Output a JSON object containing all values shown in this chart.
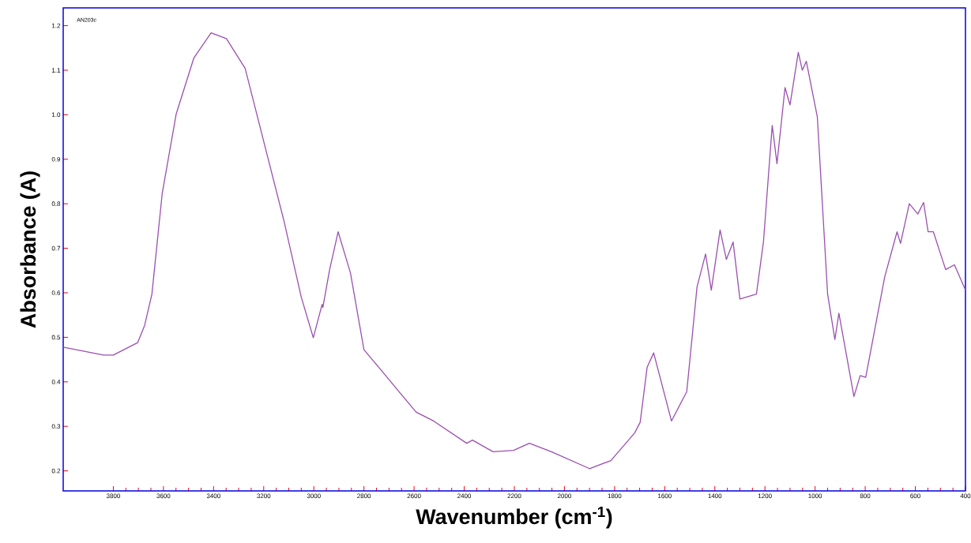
{
  "chart_data": {
    "type": "line",
    "xlabel": "Wavenumber (cm$^{-1}$)",
    "ylabel": "Absorbance (A)",
    "annotations": [
      "AN203c"
    ],
    "xlim": [
      4000,
      400
    ],
    "ylim": [
      0.155,
      1.24
    ],
    "xticks": [
      3800,
      3600,
      3400,
      3200,
      3000,
      2800,
      2600,
      2400,
      2200,
      2000,
      1800,
      1600,
      1400,
      1200,
      1000,
      800,
      600,
      400
    ],
    "yticks": [
      0.2,
      0.3,
      0.4,
      0.5,
      0.6,
      0.7,
      0.8,
      0.9,
      {
        "value": 1.0,
        "label": "1.0"
      },
      1.1,
      1.2
    ],
    "grid": false,
    "marker": "none",
    "line_style": "solid",
    "series": [
      {
        "color": "#9a4fb0",
        "x": [
          4000,
          3839,
          3800,
          3703,
          3675,
          3646,
          3605,
          3549,
          3479,
          3410,
          3349,
          3274,
          3204,
          3119,
          3050,
          3002,
          2967,
          2964,
          2937,
          2903,
          2854,
          2800,
          2731,
          2592,
          2522,
          2390,
          2367,
          2285,
          2203,
          2140,
          2052,
          1900,
          1815,
          1720,
          1698,
          1670,
          1644,
          1573,
          1512,
          1471,
          1437,
          1414,
          1379,
          1354,
          1327,
          1300,
          1234,
          1206,
          1171,
          1152,
          1120,
          1100,
          1067,
          1051,
          1035,
          991,
          950,
          921,
          905,
          845,
          820,
          798,
          722,
          673,
          659,
          624,
          590,
          567,
          549,
          528,
          479,
          444,
          400
        ],
        "values": [
          0.478,
          0.46,
          0.46,
          0.488,
          0.527,
          0.597,
          0.823,
          1.002,
          1.127,
          1.184,
          1.171,
          1.104,
          0.949,
          0.761,
          0.59,
          0.499,
          0.574,
          0.567,
          0.652,
          0.737,
          0.645,
          0.472,
          0.426,
          0.332,
          0.312,
          0.262,
          0.269,
          0.243,
          0.246,
          0.262,
          0.243,
          0.205,
          0.223,
          0.285,
          0.309,
          0.433,
          0.465,
          0.312,
          0.378,
          0.613,
          0.687,
          0.606,
          0.741,
          0.675,
          0.714,
          0.586,
          0.597,
          0.714,
          0.976,
          0.89,
          1.061,
          1.022,
          1.14,
          1.1,
          1.12,
          0.995,
          0.597,
          0.495,
          0.554,
          0.367,
          0.414,
          0.41,
          0.636,
          0.737,
          0.711,
          0.8,
          0.777,
          0.803,
          0.737,
          0.737,
          0.652,
          0.663,
          0.606
        ]
      }
    ]
  }
}
